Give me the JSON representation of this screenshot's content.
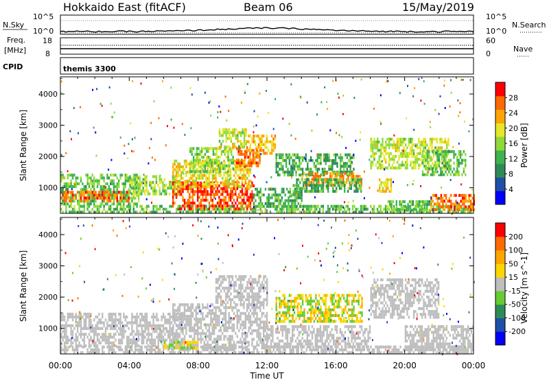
{
  "header": {
    "station": "Hokkaido East (fitACF)",
    "beam": "Beam 06",
    "date": "15/May/2019"
  },
  "strip_labels": {
    "nsky": "N.Sky",
    "nsearch": "N.Search",
    "freq_line1": "Freq.",
    "freq_line2": "[MHz]",
    "nave": "Nave",
    "cpid": "CPID",
    "cpid_value": "themis 3300",
    "noise_tick_top": "10^5",
    "noise_tick_bottom": "10^0",
    "freq_tick_top": "18",
    "freq_tick_bottom": "8",
    "nave_tick_top": "60",
    "nave_tick_bottom": "0"
  },
  "colors": {
    "power_scale": [
      "#0000ff",
      "#1f4fa8",
      "#2e8b57",
      "#3fb34f",
      "#8fd93a",
      "#e6e62a",
      "#ffa500",
      "#ff6a00",
      "#ff0000"
    ],
    "velocity_scale": [
      "#0000ff",
      "#1f4fa8",
      "#2e8b57",
      "#66cc33",
      "#bebebe",
      "#ffd700",
      "#ffa500",
      "#ff6a00",
      "#ff0000"
    ],
    "ground_scatter": "#bebebe"
  },
  "chart_data": [
    {
      "type": "heatmap",
      "name": "Power",
      "ylabel": "Slant Range [km]",
      "xlabel": "",
      "colorbar_label": "Power [dB]",
      "colorbar_ticks": [
        "4",
        "8",
        "12",
        "16",
        "20",
        "24",
        "28"
      ],
      "colorbar_range": [
        0,
        32
      ],
      "ylim": [
        180,
        4550
      ],
      "yticks": [
        "1000",
        "2000",
        "3000",
        "4000"
      ],
      "xlim_hours": [
        0,
        24
      ],
      "regions": [
        {
          "t": [
            0,
            24
          ],
          "r": [
            200,
            450
          ],
          "level": 14
        },
        {
          "t": [
            0,
            4.5
          ],
          "r": [
            450,
            1450
          ],
          "level": 14
        },
        {
          "t": [
            0,
            4
          ],
          "r": [
            550,
            900
          ],
          "level": 26
        },
        {
          "t": [
            4,
            7
          ],
          "r": [
            800,
            1400
          ],
          "level": 16
        },
        {
          "t": [
            6.5,
            11.2
          ],
          "r": [
            300,
            1200
          ],
          "level": 28
        },
        {
          "t": [
            6.5,
            11
          ],
          "r": [
            1000,
            1900
          ],
          "level": 20
        },
        {
          "t": [
            7.5,
            10
          ],
          "r": [
            1500,
            2300
          ],
          "level": 16
        },
        {
          "t": [
            9.2,
            10.8
          ],
          "r": [
            2300,
            2900
          ],
          "level": 18
        },
        {
          "t": [
            10.2,
            11.6
          ],
          "r": [
            1700,
            2300
          ],
          "level": 26
        },
        {
          "t": [
            10.8,
            12.5
          ],
          "r": [
            2100,
            2700
          ],
          "level": 22
        },
        {
          "t": [
            11.2,
            14
          ],
          "r": [
            400,
            1000
          ],
          "level": 12
        },
        {
          "t": [
            12.5,
            17
          ],
          "r": [
            1400,
            2100
          ],
          "level": 12
        },
        {
          "t": [
            14,
            17.5
          ],
          "r": [
            1100,
            1500
          ],
          "level": 24
        },
        {
          "t": [
            13.5,
            17.5
          ],
          "r": [
            900,
            1300
          ],
          "level": 12
        },
        {
          "t": [
            18,
            22.5
          ],
          "r": [
            1600,
            2600
          ],
          "level": 18
        },
        {
          "t": [
            21,
            23.5
          ],
          "r": [
            1400,
            2200
          ],
          "level": 14
        },
        {
          "t": [
            18.5,
            19.2
          ],
          "r": [
            900,
            1300
          ],
          "level": 20
        },
        {
          "t": [
            21.5,
            24
          ],
          "r": [
            300,
            800
          ],
          "level": 26
        },
        {
          "t": [
            19,
            21.5
          ],
          "r": [
            300,
            600
          ],
          "level": 14
        }
      ]
    },
    {
      "type": "heatmap",
      "name": "Velocity",
      "ylabel": "Slant Range [km]",
      "xlabel": "Time UT",
      "colorbar_label": "Velocity [m s^-1]",
      "colorbar_ticks": [
        "-200",
        "-100",
        "-50",
        "-15",
        "15",
        "50",
        "100",
        "200"
      ],
      "colorbar_range": [
        -250,
        250
      ],
      "ylim": [
        180,
        4550
      ],
      "yticks": [
        "1000",
        "2000",
        "3000",
        "4000"
      ],
      "xticks": [
        "00:00",
        "04:00",
        "08:00",
        "12:00",
        "16:00",
        "20:00",
        "00:00"
      ],
      "xlim_hours": [
        0,
        24
      ],
      "regions": [
        {
          "t": [
            0,
            24
          ],
          "r": [
            200,
            450
          ],
          "level": "gs"
        },
        {
          "t": [
            0,
            7
          ],
          "r": [
            450,
            1500
          ],
          "level": "gs"
        },
        {
          "t": [
            6.5,
            12
          ],
          "r": [
            400,
            1800
          ],
          "level": "gs"
        },
        {
          "t": [
            9,
            12
          ],
          "r": [
            1800,
            2700
          ],
          "level": "gs"
        },
        {
          "t": [
            12,
            18
          ],
          "r": [
            400,
            1100
          ],
          "level": "gs"
        },
        {
          "t": [
            12.5,
            17.5
          ],
          "r": [
            1200,
            2100
          ],
          "level": 40
        },
        {
          "t": [
            18,
            22
          ],
          "r": [
            1400,
            2600
          ],
          "level": "gs"
        },
        {
          "t": [
            20,
            24
          ],
          "r": [
            300,
            1100
          ],
          "level": "gs"
        },
        {
          "t": [
            6,
            8
          ],
          "r": [
            350,
            600
          ],
          "level": 40
        }
      ]
    }
  ]
}
